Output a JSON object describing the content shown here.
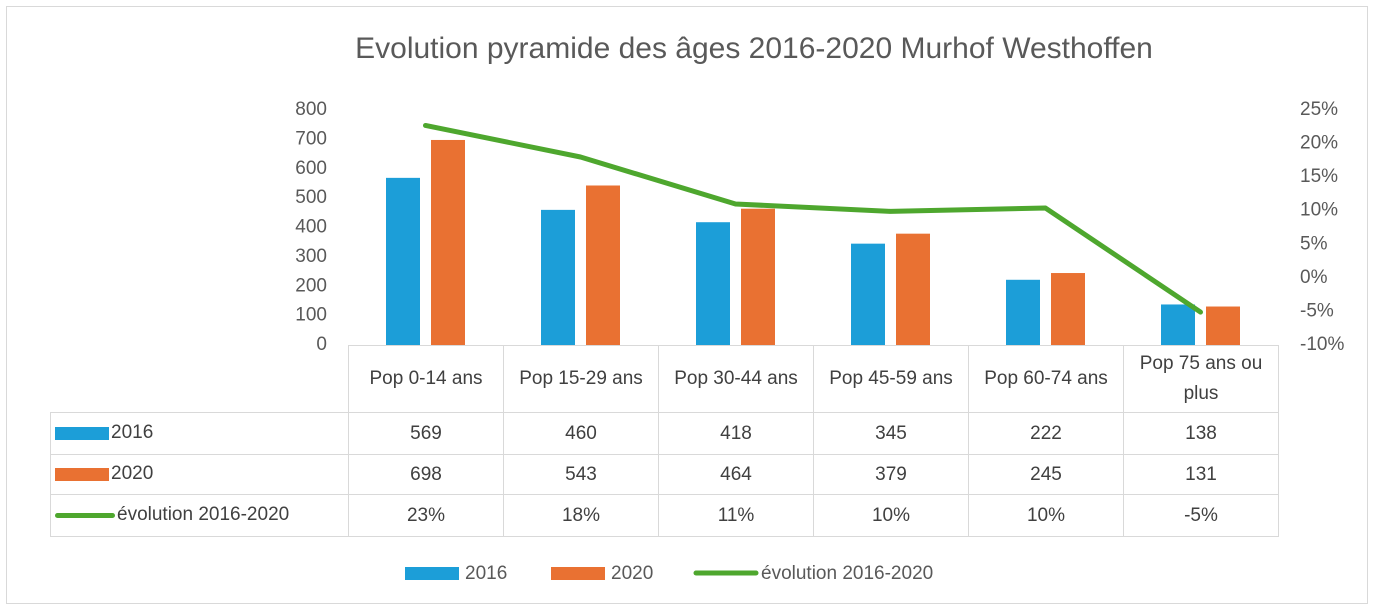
{
  "chart_data": {
    "type": "bar",
    "title": "Evolution pyramide des âges 2016-2020  Murhof Westhoffen",
    "categories": [
      "Pop 0-14 ans",
      "Pop 15-29 ans",
      "Pop 30-44 ans",
      "Pop 45-59 ans",
      "Pop 60-74 ans",
      "Pop 75 ans ou plus"
    ],
    "series": [
      {
        "name": "2016",
        "color": "#1c9ed8",
        "values": [
          569,
          460,
          418,
          345,
          222,
          138
        ]
      },
      {
        "name": "2020",
        "color": "#e97132",
        "values": [
          698,
          543,
          464,
          379,
          245,
          131
        ]
      },
      {
        "name": "évolution 2016-2020",
        "type": "line",
        "axis": "y2",
        "color": "#4ea72e",
        "values": [
          22.7,
          18.0,
          11.0,
          9.9,
          10.4,
          -5.1
        ],
        "value_labels": [
          "23%",
          "18%",
          "11%",
          "10%",
          "10%",
          "-5%"
        ]
      }
    ],
    "ylim": [
      0,
      800
    ],
    "yticks": [
      0,
      100,
      200,
      300,
      400,
      500,
      600,
      700,
      800
    ],
    "y2lim": [
      -10,
      25
    ],
    "y2ticks": [
      {
        "value": -10,
        "label": "-10%"
      },
      {
        "value": -5,
        "label": "-5%"
      },
      {
        "value": 0,
        "label": "0%"
      },
      {
        "value": 5,
        "label": "5%"
      },
      {
        "value": 10,
        "label": "10%"
      },
      {
        "value": 15,
        "label": "15%"
      },
      {
        "value": 20,
        "label": "20%"
      },
      {
        "value": 25,
        "label": "25%"
      }
    ],
    "legend": "bottom"
  }
}
